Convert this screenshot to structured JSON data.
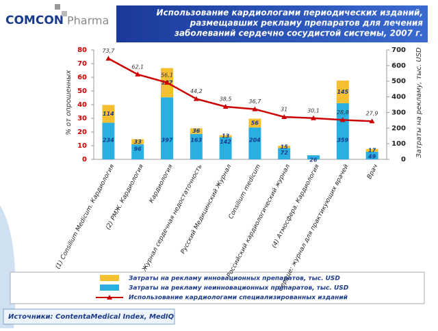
{
  "logo": {
    "brand": "COMCON",
    "product": "Pharma"
  },
  "source": "Источники: ContentaMedical Index, MedIQ",
  "chart_data": {
    "type": "bar",
    "stacked": true,
    "title": [
      "Использование кардиологами периодических изданий,",
      "размещавших рекламу препаратов для лечения",
      "заболеваний сердечно сосудистой системы, 2007 г."
    ],
    "y_label": "% от опрошенных",
    "y2_label": "Затраты на рекламу, тыс. USD",
    "categories": [
      "(1) Consilium Medicum. Кардиология",
      "(2) РМЖ. Кардиология",
      "Кардиология",
      "Журнал сердечная недостаточность",
      "Русский Медицинский Журнал",
      "Consilium medicum",
      "Российский кардиологический журнал",
      "(4) Атмосфера. Кардиология",
      "Сердце: журнал для практикующих врачей",
      "Врач"
    ],
    "series": [
      {
        "name": "Затраты на рекламу инновационных препаратов, тыс. USD",
        "color": "#f5c030",
        "axis": "y2",
        "values": [
          114,
          33,
          187,
          36,
          13,
          56,
          15,
          null,
          145,
          17
        ]
      },
      {
        "name": "Затраты на рекламу неинновационных препаратов, тыс. USD",
        "color": "#2ab0e0",
        "axis": "y2",
        "values": [
          234,
          96,
          397,
          163,
          142,
          204,
          72,
          26,
          359,
          49
        ]
      },
      {
        "name": "Использование кардиологами специализированных изданий",
        "color": "#cc0000",
        "type": "line",
        "values": [
          73.7,
          62.1,
          56.1,
          44.2,
          38.5,
          36.7,
          31,
          30.1,
          28.8,
          27.9
        ],
        "value_labels": [
          "73,7",
          "62,1",
          "56,1",
          "44,2",
          "38,5",
          "36,7",
          "31",
          "30,1",
          "28,8",
          "27,9"
        ]
      }
    ],
    "ylim": [
      0,
      80
    ],
    "yticks": [
      0,
      10,
      20,
      30,
      40,
      50,
      60,
      70,
      80
    ],
    "y2lim": [
      0,
      700
    ],
    "y2ticks": [
      0,
      100,
      200,
      300,
      400,
      500,
      600,
      700
    ]
  }
}
